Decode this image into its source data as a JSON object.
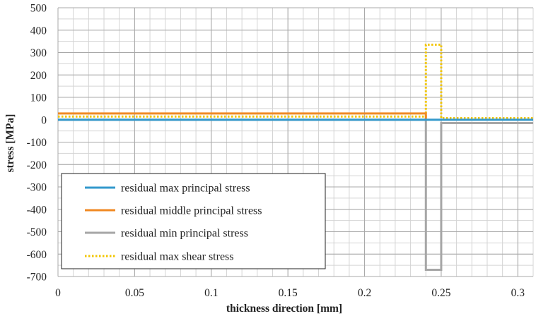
{
  "chart_data": {
    "type": "line",
    "xlabel": "thickness direction [mm]",
    "ylabel": "stress [MPa]",
    "xlim": [
      0,
      0.31
    ],
    "ylim": [
      -700,
      500
    ],
    "x_major_ticks": [
      0,
      0.05,
      0.1,
      0.15,
      0.2,
      0.25,
      0.3
    ],
    "x_tick_labels": [
      "0",
      "0.05",
      "0.1",
      "0.15",
      "0.2",
      "0.25",
      "0.3"
    ],
    "y_major_ticks": [
      500,
      400,
      300,
      200,
      100,
      0,
      -100,
      -200,
      -300,
      -400,
      -500,
      -600,
      -700
    ],
    "y_tick_labels": [
      "500",
      "400",
      "300",
      "200",
      "100",
      "0",
      "-100",
      "-200",
      "-300",
      "-400",
      "-500",
      "-600",
      "-700"
    ],
    "x_minor_step": 0.01,
    "y_minor_step": 50,
    "grid": true,
    "legend_position": "bottom-left",
    "series": [
      {
        "name": "residual max principal stress",
        "color": "#3399cc",
        "style": "solid",
        "x": [
          0,
          0.24,
          0.24,
          0.25,
          0.25,
          0.31
        ],
        "y": [
          0,
          0,
          0,
          0,
          0,
          0
        ]
      },
      {
        "name": "residual middle principal stress",
        "color": "#f08a24",
        "style": "solid",
        "x": [
          0,
          0.24,
          0.24
        ],
        "y": [
          28,
          28,
          0
        ]
      },
      {
        "name": "residual min principal stress",
        "color": "#a6a6a6",
        "style": "solid",
        "x": [
          0,
          0.24,
          0.24,
          0.25,
          0.25,
          0.31
        ],
        "y": [
          0,
          0,
          -670,
          -670,
          -15,
          -15
        ]
      },
      {
        "name": "residual max shear stress",
        "color": "#f2c500",
        "style": "dotted",
        "x": [
          0,
          0.24,
          0.24,
          0.25,
          0.25,
          0.31
        ],
        "y": [
          14,
          14,
          335,
          335,
          7,
          7
        ]
      }
    ]
  }
}
